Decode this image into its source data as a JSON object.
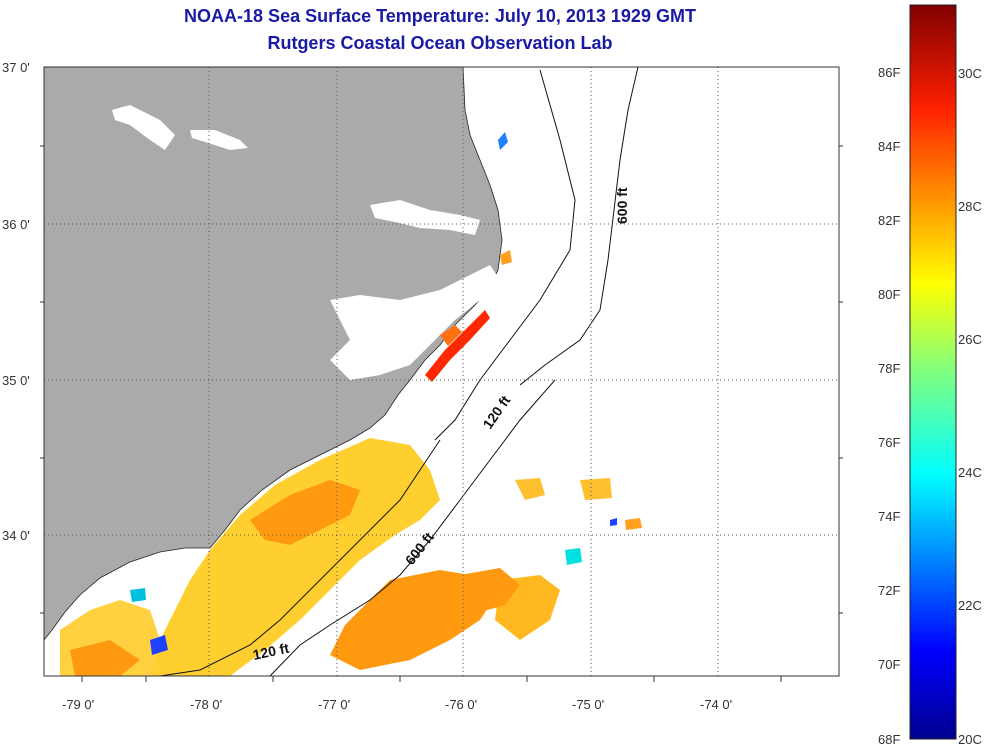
{
  "header": {
    "title_line1": "NOAA-18 Sea Surface Temperature:  July 10, 2013 1929 GMT",
    "title_line2": "Rutgers Coastal Ocean Observation Lab"
  },
  "map": {
    "lat_labels": [
      "37 0'",
      "36 0'",
      "35 0'",
      "34 0'"
    ],
    "lon_labels": [
      "-79 0'",
      "-78 0'",
      "-77 0'",
      "-76 0'",
      "-75 0'",
      "-74 0'"
    ],
    "contours": [
      {
        "label": "600 ft"
      },
      {
        "label": "120 ft"
      },
      {
        "label": "600 ft"
      },
      {
        "label": "120 ft"
      }
    ],
    "colors": {
      "land": "#aaaaaa",
      "water_nodata": "#ffffff"
    }
  },
  "colorbar": {
    "fahrenheit_labels": [
      "86F",
      "84F",
      "82F",
      "80F",
      "78F",
      "76F",
      "74F",
      "72F",
      "70F",
      "68F"
    ],
    "celsius_labels": [
      "30C",
      "28C",
      "26C",
      "24C",
      "22C",
      "20C"
    ]
  }
}
